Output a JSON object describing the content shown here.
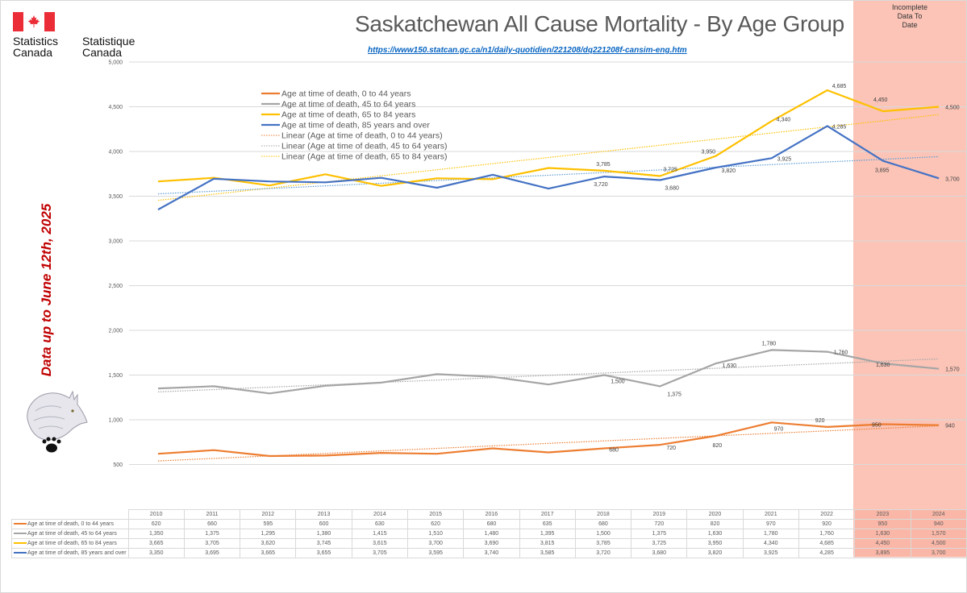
{
  "logo": {
    "name_en_line1": "Statistics",
    "name_en_line2": "Canada",
    "name_fr_line1": "Statistique",
    "name_fr_line2": "Canada",
    "flag_icon": "canada-flag-icon"
  },
  "header": {
    "title": "Saskatchewan All Cause Mortality - By Age Group",
    "source_url": "https://www150.statcan.gc.ca/n1/daily-quotidien/221208/dq221208f-cansim-eng.htm"
  },
  "side_note": "Data up to June 12th, 2025",
  "incomplete_note": [
    "Incomplete",
    "Data To",
    "Date"
  ],
  "mascot_icon": "wolf-paw-icon",
  "colors": {
    "series_0_44": "#ed7d31",
    "series_45_64": "#a5a5a5",
    "series_65_84": "#ffc000",
    "series_85_plus": "#4472c4",
    "incomplete_band": "#f8a08a",
    "side_note": "#c00000",
    "link": "#0563c1"
  },
  "chart_data": {
    "type": "line",
    "title": "Saskatchewan All Cause Mortality - By Age Group",
    "xlabel": "",
    "ylabel": "",
    "x": [
      "2010",
      "2011",
      "2012",
      "2013",
      "2014",
      "2015",
      "2016",
      "2017",
      "2018",
      "2019",
      "2020",
      "2021",
      "2022",
      "2023",
      "2024"
    ],
    "ylim": [
      0,
      5000
    ],
    "yticks": [
      "500",
      "1,000",
      "1,500",
      "2,000",
      "2,500",
      "3,000",
      "3,500",
      "4,000",
      "4,500",
      "5,000"
    ],
    "ytick_values": [
      500,
      1000,
      1500,
      2000,
      2500,
      3000,
      3500,
      4000,
      4500,
      5000
    ],
    "grid": true,
    "legend_position": "top-left",
    "shaded_years": [
      "2023",
      "2024"
    ],
    "shaded_label": "Incomplete Data To Date",
    "series": [
      {
        "name": "Age at time of death, 0 to 44 years",
        "color_key": "series_0_44",
        "values": [
          620,
          660,
          595,
          600,
          630,
          620,
          680,
          635,
          680,
          720,
          820,
          970,
          920,
          950,
          940
        ],
        "values_display": [
          "620",
          "660",
          "595",
          "600",
          "630",
          "620",
          "680",
          "635",
          "680",
          "720",
          "820",
          "970",
          "920",
          "950",
          "940"
        ],
        "labeled_years": [
          "2018",
          "2019",
          "2020",
          "2021",
          "2022",
          "2023",
          "2024"
        ]
      },
      {
        "name": "Age at time of death, 45 to 64 years",
        "color_key": "series_45_64",
        "values": [
          1350,
          1375,
          1295,
          1380,
          1415,
          1510,
          1480,
          1395,
          1500,
          1375,
          1630,
          1780,
          1760,
          1630,
          1570
        ],
        "values_display": [
          "1,350",
          "1,375",
          "1,295",
          "1,380",
          "1,415",
          "1,510",
          "1,480",
          "1,395",
          "1,500",
          "1,375",
          "1,630",
          "1,780",
          "1,760",
          "1,630",
          "1,570"
        ],
        "labeled_years": [
          "2018",
          "2019",
          "2020",
          "2021",
          "2022",
          "2023",
          "2024"
        ]
      },
      {
        "name": "Age at time of death, 65 to 84 years",
        "color_key": "series_65_84",
        "values": [
          3665,
          3705,
          3620,
          3745,
          3615,
          3700,
          3690,
          3815,
          3785,
          3725,
          3950,
          4340,
          4685,
          4450,
          4500
        ],
        "values_display": [
          "3,665",
          "3,705",
          "3,620",
          "3,745",
          "3,615",
          "3,700",
          "3,690",
          "3,815",
          "3,785",
          "3,725",
          "3,950",
          "4,340",
          "4,685",
          "4,450",
          "4,500"
        ],
        "labeled_years": [
          "2018",
          "2019",
          "2020",
          "2021",
          "2022",
          "2023",
          "2024"
        ]
      },
      {
        "name": "Age at time of death, 85 years and over",
        "color_key": "series_85_plus",
        "values": [
          3350,
          3695,
          3665,
          3655,
          3705,
          3595,
          3740,
          3585,
          3720,
          3680,
          3820,
          3925,
          4285,
          3895,
          3700
        ],
        "values_display": [
          "3,350",
          "3,695",
          "3,665",
          "3,655",
          "3,705",
          "3,595",
          "3,740",
          "3,585",
          "3,720",
          "3,680",
          "3,820",
          "3,925",
          "4,285",
          "3,895",
          "3,700"
        ],
        "labeled_years": [
          "2018",
          "2019",
          "2020",
          "2021",
          "2022",
          "2023",
          "2024"
        ]
      }
    ],
    "trendlines": [
      {
        "name": "Linear (Age at time of death, 0 to 44 years)",
        "of_series": 0,
        "color_key": "series_0_44"
      },
      {
        "name": "Linear (Age at time of death, 45 to 64 years)",
        "of_series": 1,
        "color_key": "series_45_64"
      },
      {
        "name": "Linear (Age at time of death, 65 to 84 years)",
        "of_series": 2,
        "color_key": "series_65_84"
      },
      {
        "name": "",
        "of_series": 3,
        "color_key": "series_85_plus"
      }
    ]
  }
}
